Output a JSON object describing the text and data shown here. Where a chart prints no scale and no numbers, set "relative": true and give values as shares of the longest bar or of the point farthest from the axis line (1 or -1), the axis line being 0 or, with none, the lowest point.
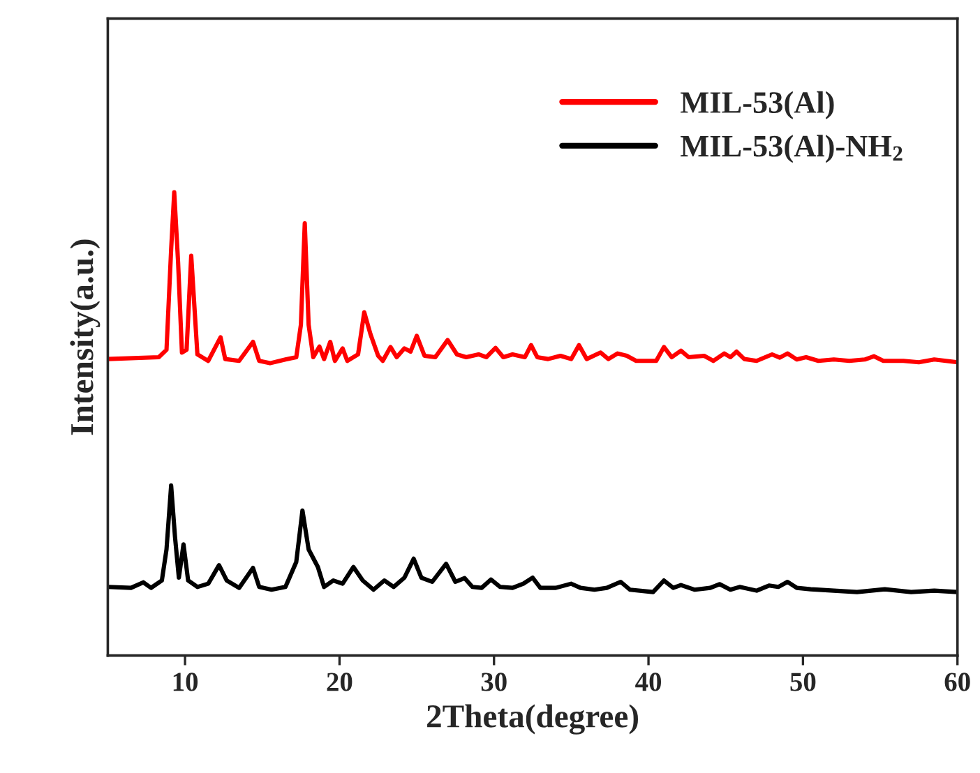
{
  "chart_data": {
    "type": "line",
    "xlabel": "2Theta(degree)",
    "ylabel": "Intensity(a.u.)",
    "relative": true,
    "xlim": [
      5,
      60
    ],
    "xticks": [
      10,
      20,
      30,
      40,
      50,
      60
    ],
    "legend": "top right",
    "grid": false,
    "marker": "none",
    "line_style": "solid",
    "series": [
      {
        "name": "MIL-53(Al)",
        "color": "#ff0000",
        "x": [
          5.0,
          8.3,
          8.8,
          9.1,
          9.3,
          9.55,
          9.8,
          10.1,
          10.4,
          10.8,
          11.5,
          12.3,
          12.6,
          13.5,
          14.4,
          14.8,
          15.5,
          16.5,
          17.2,
          17.5,
          17.75,
          18.0,
          18.3,
          18.7,
          19.0,
          19.4,
          19.7,
          20.2,
          20.5,
          21.2,
          21.6,
          22.0,
          22.5,
          22.8,
          23.3,
          23.7,
          24.2,
          24.6,
          25.0,
          25.5,
          26.2,
          27.0,
          27.6,
          28.2,
          29.0,
          29.5,
          30.1,
          30.6,
          31.2,
          32.0,
          32.4,
          32.8,
          33.5,
          34.3,
          35.0,
          35.5,
          36.0,
          36.9,
          37.4,
          38.0,
          38.6,
          39.2,
          40.5,
          41.0,
          41.5,
          42.1,
          42.6,
          43.6,
          44.2,
          44.9,
          45.3,
          45.7,
          46.2,
          47.0,
          48.0,
          48.5,
          49.0,
          49.6,
          50.2,
          51.0,
          52.0,
          53.0,
          54.0,
          54.6,
          55.2,
          56.5,
          57.5,
          58.5,
          60.0
        ],
        "values": [
          0.64,
          0.644,
          0.66,
          0.876,
          1.0,
          0.849,
          0.654,
          0.66,
          0.863,
          0.65,
          0.636,
          0.687,
          0.64,
          0.636,
          0.677,
          0.636,
          0.631,
          0.639,
          0.644,
          0.714,
          0.933,
          0.714,
          0.644,
          0.667,
          0.64,
          0.677,
          0.636,
          0.663,
          0.636,
          0.65,
          0.741,
          0.694,
          0.647,
          0.636,
          0.666,
          0.644,
          0.663,
          0.656,
          0.69,
          0.647,
          0.644,
          0.681,
          0.65,
          0.644,
          0.65,
          0.644,
          0.664,
          0.644,
          0.65,
          0.644,
          0.67,
          0.644,
          0.64,
          0.647,
          0.64,
          0.67,
          0.64,
          0.654,
          0.64,
          0.652,
          0.647,
          0.636,
          0.636,
          0.666,
          0.644,
          0.658,
          0.644,
          0.647,
          0.636,
          0.652,
          0.644,
          0.656,
          0.64,
          0.636,
          0.65,
          0.643,
          0.652,
          0.639,
          0.644,
          0.636,
          0.639,
          0.636,
          0.639,
          0.646,
          0.636,
          0.636,
          0.633,
          0.639,
          0.633
        ]
      },
      {
        "name": "MIL-53(Al)-NH$_{2}$",
        "color": "#000000",
        "x": [
          5.0,
          6.5,
          7.3,
          7.8,
          8.5,
          8.8,
          9.1,
          9.35,
          9.6,
          9.9,
          10.2,
          10.8,
          11.5,
          12.2,
          12.7,
          13.5,
          14.4,
          14.8,
          15.6,
          16.5,
          17.2,
          17.6,
          18.0,
          18.6,
          19.0,
          19.6,
          20.2,
          20.9,
          21.5,
          22.2,
          22.9,
          23.5,
          24.2,
          24.8,
          25.3,
          26.0,
          26.9,
          27.5,
          28.1,
          28.6,
          29.2,
          29.8,
          30.4,
          31.2,
          31.9,
          32.5,
          33.0,
          34.0,
          35.0,
          35.6,
          36.5,
          37.3,
          38.2,
          38.8,
          40.3,
          41.0,
          41.6,
          42.1,
          43.0,
          44.0,
          44.6,
          45.3,
          45.9,
          47.0,
          47.8,
          48.4,
          49.0,
          49.6,
          50.5,
          52.0,
          53.5,
          55.3,
          57.0,
          58.5,
          60.0
        ],
        "values": [
          0.148,
          0.146,
          0.158,
          0.146,
          0.162,
          0.229,
          0.367,
          0.256,
          0.168,
          0.24,
          0.162,
          0.148,
          0.155,
          0.195,
          0.162,
          0.146,
          0.189,
          0.148,
          0.142,
          0.148,
          0.202,
          0.313,
          0.229,
          0.191,
          0.148,
          0.162,
          0.155,
          0.191,
          0.162,
          0.142,
          0.162,
          0.148,
          0.168,
          0.209,
          0.168,
          0.159,
          0.198,
          0.159,
          0.167,
          0.148,
          0.146,
          0.164,
          0.148,
          0.146,
          0.155,
          0.168,
          0.146,
          0.146,
          0.155,
          0.146,
          0.142,
          0.146,
          0.159,
          0.142,
          0.137,
          0.162,
          0.146,
          0.152,
          0.142,
          0.146,
          0.154,
          0.142,
          0.148,
          0.14,
          0.151,
          0.148,
          0.159,
          0.146,
          0.143,
          0.14,
          0.137,
          0.143,
          0.137,
          0.14,
          0.137
        ]
      }
    ]
  }
}
